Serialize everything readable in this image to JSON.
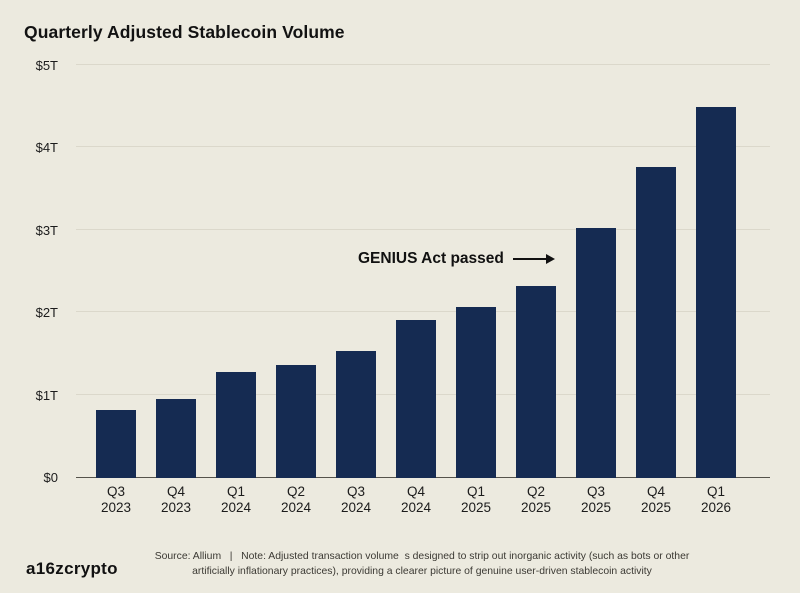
{
  "title": "Quarterly Adjusted Stablecoin Volume",
  "colors": {
    "background": "#ECEADF",
    "bar": "#152B52",
    "gridline": "#DBD8CB",
    "axis_line": "#55534B",
    "text": "#121212"
  },
  "annotation": {
    "text": "GENIUS Act passed",
    "target_category": "Q3 2025"
  },
  "chart_data": {
    "type": "bar",
    "title": "Quarterly Adjusted Stablecoin Volume",
    "categories": [
      {
        "quarter": "Q3",
        "year": "2023"
      },
      {
        "quarter": "Q4",
        "year": "2023"
      },
      {
        "quarter": "Q1",
        "year": "2024"
      },
      {
        "quarter": "Q2",
        "year": "2024"
      },
      {
        "quarter": "Q3",
        "year": "2024"
      },
      {
        "quarter": "Q4",
        "year": "2024"
      },
      {
        "quarter": "Q1",
        "year": "2025"
      },
      {
        "quarter": "Q2",
        "year": "2025"
      },
      {
        "quarter": "Q3",
        "year": "2025"
      },
      {
        "quarter": "Q4",
        "year": "2025"
      },
      {
        "quarter": "Q1",
        "year": "2026"
      }
    ],
    "values": [
      0.82,
      0.96,
      1.29,
      1.37,
      1.54,
      1.92,
      2.08,
      2.33,
      3.04,
      3.78,
      4.5
    ],
    "unit": "trillion USD",
    "xlabel": "",
    "ylabel": "",
    "ylim": [
      0,
      5
    ],
    "yticks": [
      {
        "label": "$0",
        "value": 0
      },
      {
        "label": "$1T",
        "value": 1
      },
      {
        "label": "$2T",
        "value": 2
      },
      {
        "label": "$3T",
        "value": 3
      },
      {
        "label": "$4T",
        "value": 4
      },
      {
        "label": "$5T",
        "value": 5
      }
    ],
    "grid": "horizontal",
    "legend": "none"
  },
  "footer": {
    "logo": "a16zcrypto",
    "note_line1": "Source: Allium   |   Note: Adjusted transaction volume  s designed to strip out inorganic activity (such as bots or other",
    "note_line2": "artificially inflationary practices), providing a clearer picture of genuine user-driven stablecoin activity"
  }
}
